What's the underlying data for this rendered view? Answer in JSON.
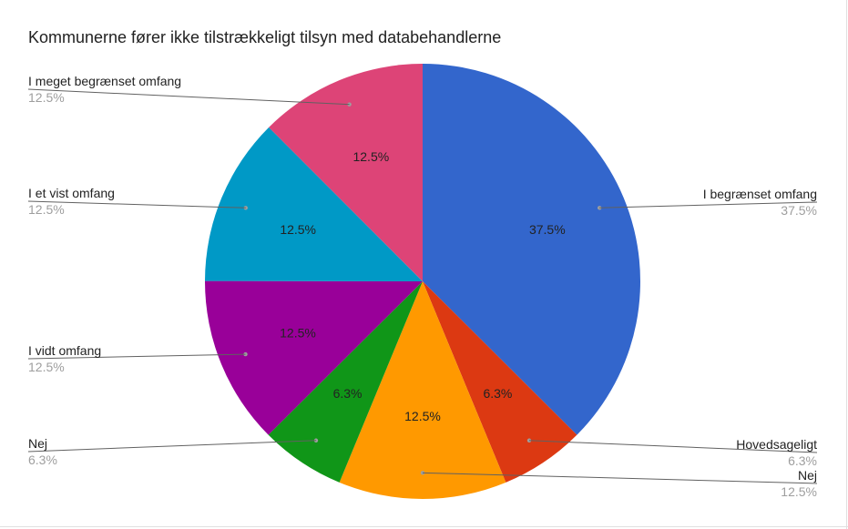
{
  "chart_data": {
    "type": "pie",
    "title": "Kommunerne fører ikke tilstrækkeligt tilsyn med databehandlerne",
    "slices": [
      {
        "label": "I begrænset omfang",
        "value": 37.5,
        "display": "37.5%",
        "color": "#3366cc"
      },
      {
        "label": "Hovedsageligt",
        "value": 6.3,
        "display": "6.3%",
        "color": "#dc3912"
      },
      {
        "label": "Nej",
        "value": 12.5,
        "display": "12.5%",
        "color": "#ff9900"
      },
      {
        "label": "Nej",
        "value": 6.3,
        "display": "6.3%",
        "color": "#109618"
      },
      {
        "label": "I vidt omfang",
        "value": 12.5,
        "display": "12.5%",
        "color": "#990099"
      },
      {
        "label": "I et vist omfang",
        "value": 12.5,
        "display": "12.5%",
        "color": "#0099c6"
      },
      {
        "label": "I meget begrænset omfang",
        "value": 12.5,
        "display": "12.5%",
        "color": "#dd4477"
      }
    ],
    "legend": "callout-labels"
  }
}
